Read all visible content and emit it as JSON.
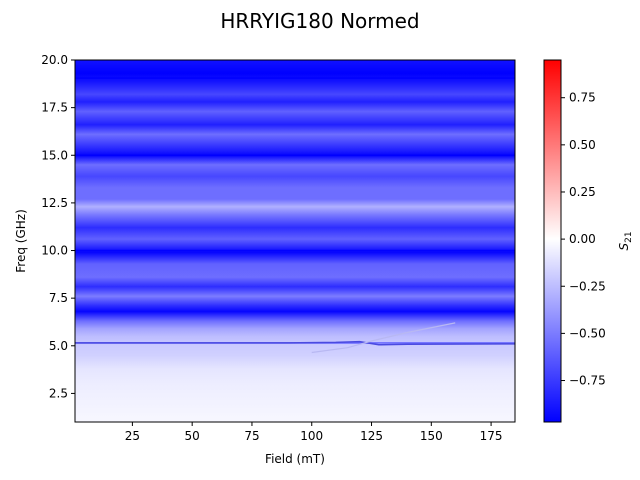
{
  "chart_data": {
    "type": "heatmap",
    "title": "HRRYIG180 Normed",
    "xlabel": "Field (mT)",
    "ylabel": "Freq (GHz)",
    "xlim": [
      1,
      185
    ],
    "ylim": [
      1,
      20
    ],
    "x_ticks": [
      25,
      50,
      75,
      100,
      125,
      150,
      175
    ],
    "y_ticks": [
      2.5,
      5.0,
      7.5,
      10.0,
      12.5,
      15.0,
      17.5,
      20.0
    ],
    "colorbar": {
      "label": "S21",
      "colormap": "bwr",
      "range": [
        -0.97,
        0.95
      ],
      "ticks": [
        -0.75,
        -0.5,
        -0.25,
        0.0,
        0.25,
        0.5,
        0.75
      ],
      "tick_labels": [
        "−0.75",
        "−0.50",
        "−0.25",
        "0.00",
        "0.25",
        "0.50",
        "0.75"
      ]
    },
    "background_profile_ghz": [
      [
        1.0,
        -0.03
      ],
      [
        2.0,
        -0.05
      ],
      [
        3.0,
        -0.07
      ],
      [
        3.8,
        -0.1
      ],
      [
        4.5,
        -0.18
      ],
      [
        5.0,
        -0.2
      ],
      [
        5.5,
        -0.25
      ],
      [
        5.9,
        -0.35
      ],
      [
        6.3,
        -0.55
      ],
      [
        6.8,
        -0.95
      ],
      [
        7.1,
        -0.8
      ],
      [
        7.6,
        -0.5
      ],
      [
        8.1,
        -0.8
      ],
      [
        8.6,
        -0.55
      ],
      [
        9.3,
        -0.6
      ],
      [
        9.9,
        -0.95
      ],
      [
        10.6,
        -0.6
      ],
      [
        11.2,
        -0.8
      ],
      [
        11.9,
        -0.5
      ],
      [
        12.3,
        -0.3
      ],
      [
        12.7,
        -0.55
      ],
      [
        13.3,
        -0.55
      ],
      [
        13.9,
        -0.7
      ],
      [
        14.5,
        -0.55
      ],
      [
        15.0,
        -0.95
      ],
      [
        15.4,
        -0.8
      ],
      [
        16.1,
        -0.55
      ],
      [
        16.6,
        -0.85
      ],
      [
        17.3,
        -0.6
      ],
      [
        17.8,
        -0.85
      ],
      [
        18.2,
        -0.7
      ],
      [
        18.9,
        -0.9
      ],
      [
        19.3,
        -0.97
      ],
      [
        20.0,
        -0.9
      ]
    ],
    "horizontal_lines": [
      {
        "freq": 5.15,
        "value": -0.6
      },
      {
        "freq": 10.0,
        "value": -0.97
      },
      {
        "freq": 15.0,
        "value": -0.97
      },
      {
        "freq": 19.05,
        "value": -0.97
      }
    ],
    "curves": [
      {
        "name": "lower_branch",
        "points": [
          [
            1,
            5.15
          ],
          [
            90,
            5.15
          ],
          [
            110,
            5.18
          ],
          [
            120,
            5.22
          ],
          [
            128,
            5.05
          ],
          [
            140,
            5.08
          ],
          [
            185,
            5.1
          ]
        ]
      },
      {
        "name": "upper_branch",
        "points": [
          [
            100,
            4.65
          ],
          [
            115,
            4.9
          ],
          [
            125,
            5.25
          ],
          [
            140,
            5.7
          ],
          [
            160,
            6.2
          ]
        ]
      }
    ]
  }
}
